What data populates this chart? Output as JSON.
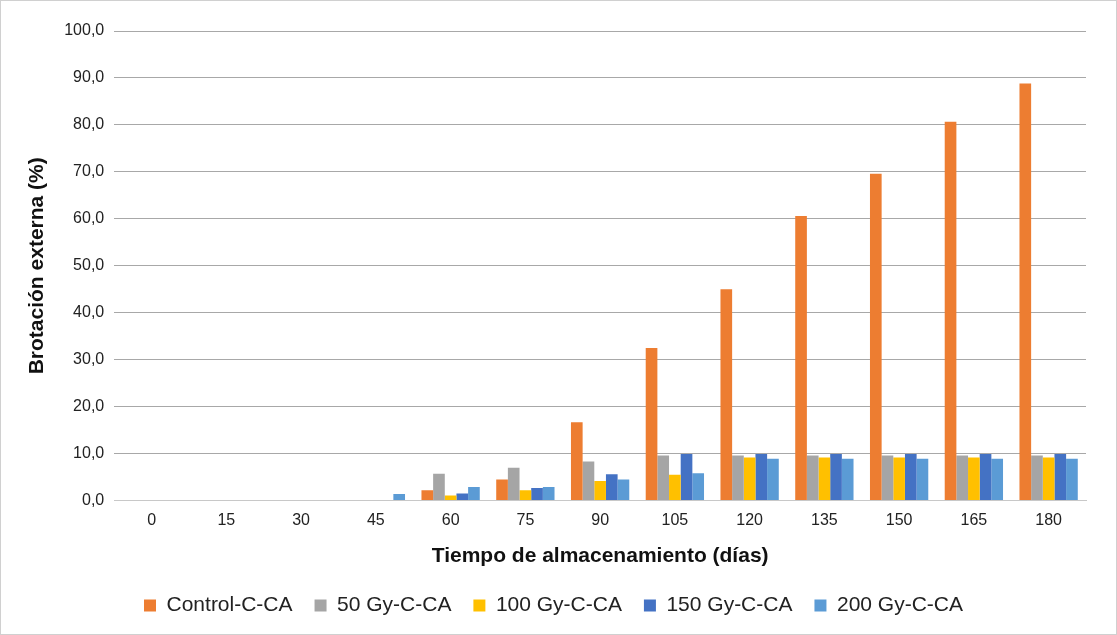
{
  "chart_data": {
    "type": "bar",
    "xlabel": "Tiempo de almacenamiento (días)",
    "ylabel": "Brotación externa (%)",
    "categories": [
      "0",
      "15",
      "30",
      "45",
      "60",
      "75",
      "90",
      "105",
      "120",
      "135",
      "150",
      "165",
      "180"
    ],
    "series": [
      {
        "name": "Control-C-CA",
        "color": "#ed7d31",
        "values": [
          0,
          0,
          0,
          0,
          2.2,
          4.5,
          16.7,
          32.5,
          45.0,
          60.6,
          69.6,
          80.7,
          88.8
        ]
      },
      {
        "name": "50 Gy-C-CA",
        "color": "#a5a5a5",
        "values": [
          0,
          0,
          0,
          0,
          5.7,
          7.0,
          8.3,
          9.6,
          9.6,
          9.6,
          9.6,
          9.6,
          9.6
        ]
      },
      {
        "name": "100 Gy-C-CA",
        "color": "#ffc000",
        "values": [
          0,
          0,
          0,
          0,
          1.1,
          2.2,
          4.2,
          5.5,
          9.2,
          9.2,
          9.2,
          9.2,
          9.2
        ]
      },
      {
        "name": "150 Gy-C-CA",
        "color": "#4472c4",
        "values": [
          0,
          0,
          0,
          0,
          1.5,
          2.7,
          5.6,
          9.9,
          9.9,
          9.9,
          9.9,
          9.9,
          9.9
        ]
      },
      {
        "name": "200 Gy-C-CA",
        "color": "#5b9bd5",
        "values": [
          0,
          0,
          0,
          1.4,
          2.9,
          2.9,
          4.5,
          5.8,
          8.9,
          8.9,
          8.9,
          8.9,
          8.9
        ]
      }
    ],
    "ylim": [
      0,
      100
    ],
    "yticks": [
      {
        "value": 0,
        "label": "0,0"
      },
      {
        "value": 10,
        "label": "10,0"
      },
      {
        "value": 20,
        "label": "20,0"
      },
      {
        "value": 30,
        "label": "30,0"
      },
      {
        "value": 40,
        "label": "40,0"
      },
      {
        "value": 50,
        "label": "50,0"
      },
      {
        "value": 60,
        "label": "60,0"
      },
      {
        "value": 70,
        "label": "70,0"
      },
      {
        "value": 80,
        "label": "80,0"
      },
      {
        "value": 90,
        "label": "90,0"
      },
      {
        "value": 100,
        "label": "100,0"
      }
    ],
    "grid": "y",
    "legend": "bottom"
  }
}
